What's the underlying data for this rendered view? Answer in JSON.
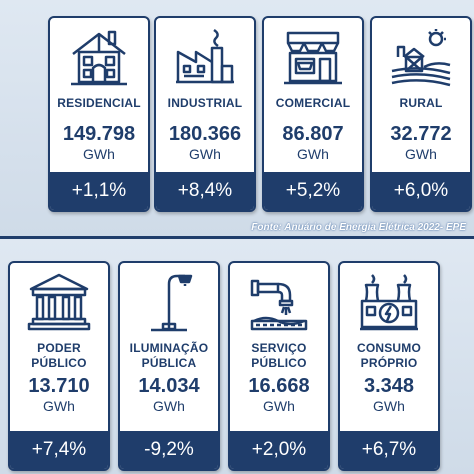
{
  "source": "Fonte: Anuário de Energia Elétrica 2022- EPE",
  "colors": {
    "navy": "#1f3d6b",
    "background": "#d9e4f0"
  },
  "top_cards": [
    {
      "icon": "house-icon",
      "label_line1": "RESIDENCIAL",
      "label_line2": "",
      "value": "149.798",
      "unit": "GWh",
      "change": "+1,1%"
    },
    {
      "icon": "factory-icon",
      "label_line1": "INDUSTRIAL",
      "label_line2": "",
      "value": "180.366",
      "unit": "GWh",
      "change": "+8,4%"
    },
    {
      "icon": "storefront-icon",
      "label_line1": "COMERCIAL",
      "label_line2": "",
      "value": "86.807",
      "unit": "GWh",
      "change": "+5,2%"
    },
    {
      "icon": "farm-icon",
      "label_line1": "RURAL",
      "label_line2": "",
      "value": "32.772",
      "unit": "GWh",
      "change": "+6,0%"
    }
  ],
  "bottom_cards": [
    {
      "icon": "government-building-icon",
      "label_line1": "PODER",
      "label_line2": "PÚBLICO",
      "value": "13.710",
      "unit": "GWh",
      "change": "+7,4%"
    },
    {
      "icon": "street-lamp-icon",
      "label_line1": "ILUMINAÇÃO",
      "label_line2": "PÚBLICA",
      "value": "14.034",
      "unit": "GWh",
      "change": "-9,2%"
    },
    {
      "icon": "water-pipe-icon",
      "label_line1": "SERVIÇO",
      "label_line2": "PÚBLICO",
      "value": "16.668",
      "unit": "GWh",
      "change": "+2,0%"
    },
    {
      "icon": "power-plant-icon",
      "label_line1": "CONSUMO",
      "label_line2": "PRÓPRIO",
      "value": "3.348",
      "unit": "GWh",
      "change": "+6,7%"
    }
  ]
}
